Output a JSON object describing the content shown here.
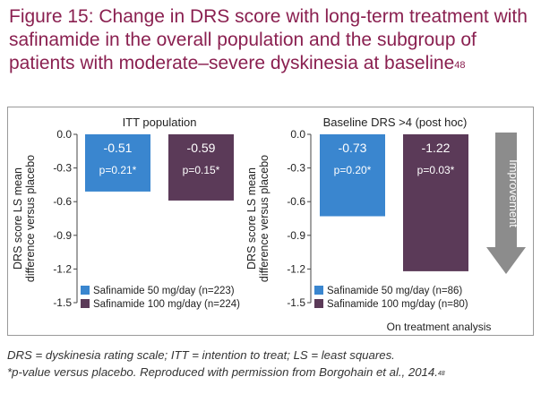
{
  "figure": {
    "title": "Figure 15: Change in DRS score with long-term treatment with safinamide in the overall population and the subgroup of patients with moderate–severe dyskinesia at baseline",
    "title_ref": "48",
    "footnote_line1": "DRS = dyskinesia rating scale; ITT = intention to treat; LS = least squares.",
    "footnote_line2": "*p-value versus placebo. Reproduced with permission from Borgohain et al., 2014.",
    "footnote_ref": "48",
    "bottom_caption": "On treatment analysis",
    "arrow_label": "Improvement"
  },
  "colors": {
    "title": "#8a2050",
    "series_50": "#3a86cf",
    "series_100": "#5b3a58",
    "arrow": "#8c8c8c"
  },
  "chart_data": [
    {
      "type": "bar",
      "title": "ITT population",
      "ylabel_line1": "DRS score LS mean",
      "ylabel_line2": "difference versus placebo",
      "ylim": [
        -1.5,
        0.0
      ],
      "yticks": [
        "0.0",
        "-0.3",
        "-0.6",
        "-0.9",
        "-1.2",
        "-1.5"
      ],
      "ytick_values": [
        0.0,
        -0.3,
        -0.6,
        -0.9,
        -1.2,
        -1.5
      ],
      "legend_position": "bottom-left",
      "series": [
        {
          "name": "Safinamide 50 mg/day (n=223)",
          "value": -0.51,
          "value_label": "-0.51",
          "p_label": "p=0.21*",
          "color": "#3a86cf"
        },
        {
          "name": "Safinamide 100 mg/day (n=224)",
          "value": -0.59,
          "value_label": "-0.59",
          "p_label": "p=0.15*",
          "color": "#5b3a58"
        }
      ]
    },
    {
      "type": "bar",
      "title": "Baseline DRS >4 (post hoc)",
      "ylabel_line1": "DRS score LS mean",
      "ylabel_line2": "difference versus placebo",
      "ylim": [
        -1.5,
        0.0
      ],
      "yticks": [
        "0.0",
        "-0.3",
        "-0.6",
        "-0.9",
        "-1.2",
        "-1.5"
      ],
      "ytick_values": [
        0.0,
        -0.3,
        -0.6,
        -0.9,
        -1.2,
        -1.5
      ],
      "legend_position": "bottom-left",
      "series": [
        {
          "name": "Safinamide 50 mg/day (n=86)",
          "value": -0.73,
          "value_label": "-0.73",
          "p_label": "p=0.20*",
          "color": "#3a86cf"
        },
        {
          "name": "Safinamide 100 mg/day (n=80)",
          "value": -1.22,
          "value_label": "-1.22",
          "p_label": "p=0.03*",
          "color": "#5b3a58"
        }
      ]
    }
  ]
}
